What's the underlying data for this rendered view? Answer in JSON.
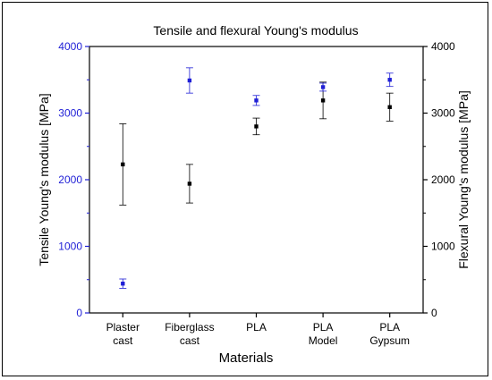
{
  "chart_data": {
    "type": "scatter",
    "title": "Tensile and flexural Young's modulus",
    "xlabel": "Materials",
    "ylabel_left": "Tensile Young's modulus [MPa]",
    "ylabel_right": "Flexural Young's modulus [MPa]",
    "ylim": [
      0,
      4000
    ],
    "yticks": [
      "0",
      "1000",
      "2000",
      "3000",
      "4000"
    ],
    "categories": [
      [
        "Plaster",
        "cast"
      ],
      [
        "Fiberglass",
        "cast"
      ],
      [
        "PLA"
      ],
      [
        "PLA",
        "Model"
      ],
      [
        "PLA",
        "Gypsum"
      ]
    ],
    "grid": false,
    "legend": "none",
    "series": [
      {
        "axis": "left",
        "color": "#000000",
        "values": [
          2230,
          1940,
          2800,
          3190,
          3090
        ],
        "error": [
          610,
          290,
          125,
          275,
          210
        ]
      },
      {
        "axis": "right",
        "color": "#1f1fd6",
        "values": [
          440,
          3490,
          3190,
          3390,
          3500
        ],
        "error": [
          70,
          190,
          75,
          60,
          100
        ]
      }
    ],
    "left_axis_color": "#1f1fd6",
    "right_axis_color": "#000000"
  }
}
